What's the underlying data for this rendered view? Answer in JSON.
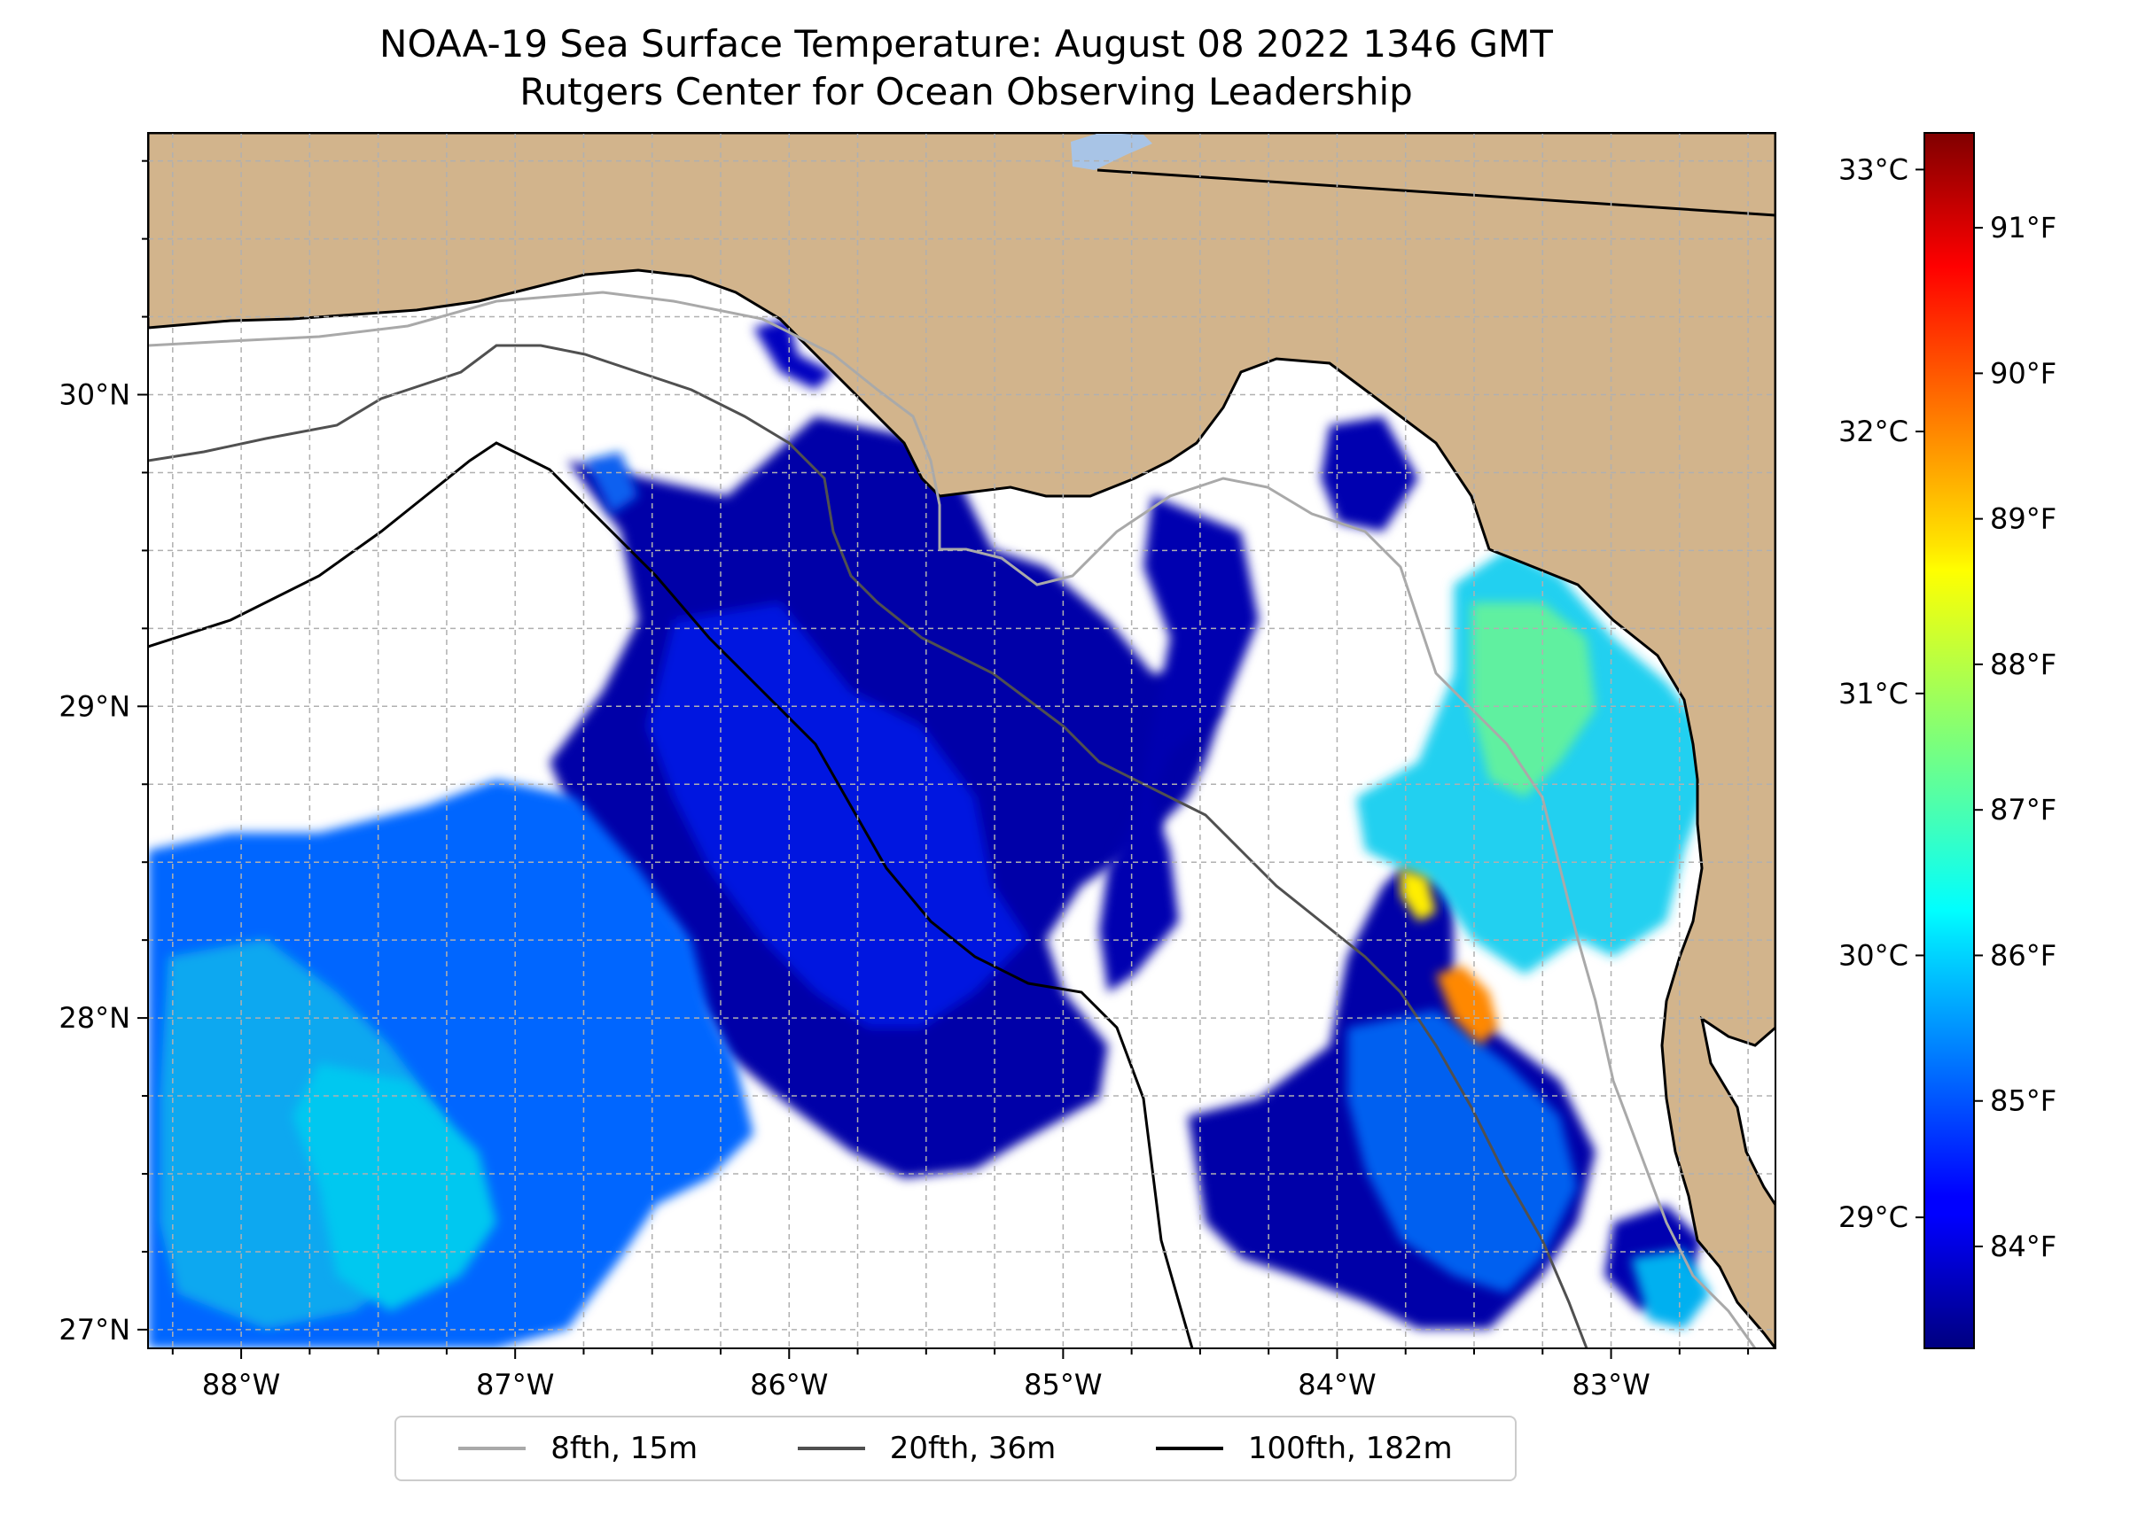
{
  "title": {
    "line1": "NOAA-19 Sea Surface Temperature: August 08 2022 1346 GMT",
    "line2": "Rutgers Center for Ocean Observing Leadership"
  },
  "map": {
    "extent": {
      "lon": [
        -88.34,
        -82.4
      ],
      "lat": [
        26.94,
        30.84
      ]
    },
    "land_color": "#d2b48c",
    "grid": true,
    "lon_ticks": [
      {
        "value": -88,
        "label": "88°W"
      },
      {
        "value": -87,
        "label": "87°W"
      },
      {
        "value": -86,
        "label": "86°W"
      },
      {
        "value": -85,
        "label": "85°W"
      },
      {
        "value": -84,
        "label": "84°W"
      },
      {
        "value": -83,
        "label": "83°W"
      }
    ],
    "lat_ticks": [
      {
        "value": 27,
        "label": "27°N"
      },
      {
        "value": 28,
        "label": "28°N"
      },
      {
        "value": 29,
        "label": "29°N"
      },
      {
        "value": 30,
        "label": "30°N"
      }
    ]
  },
  "colorbar": {
    "colormap": "jet",
    "range_c": [
      28.5,
      33.14
    ],
    "celsius_ticks": [
      {
        "value": 29,
        "label": "29°C"
      },
      {
        "value": 30,
        "label": "30°C"
      },
      {
        "value": 31,
        "label": "31°C"
      },
      {
        "value": 32,
        "label": "32°C"
      },
      {
        "value": 33,
        "label": "33°C"
      }
    ],
    "fahrenheit_ticks": [
      {
        "value": 84,
        "label": "84°F"
      },
      {
        "value": 85,
        "label": "85°F"
      },
      {
        "value": 86,
        "label": "86°F"
      },
      {
        "value": 87,
        "label": "87°F"
      },
      {
        "value": 88,
        "label": "88°F"
      },
      {
        "value": 89,
        "label": "89°F"
      },
      {
        "value": 90,
        "label": "90°F"
      },
      {
        "value": 91,
        "label": "91°F"
      }
    ]
  },
  "legend": {
    "location": "bottom-center",
    "entries": [
      {
        "label": "8fth, 15m",
        "color": "#a9a9a9"
      },
      {
        "label": "20fth, 36m",
        "color": "#505050"
      },
      {
        "label": "100fth, 182m",
        "color": "#000000"
      }
    ]
  }
}
